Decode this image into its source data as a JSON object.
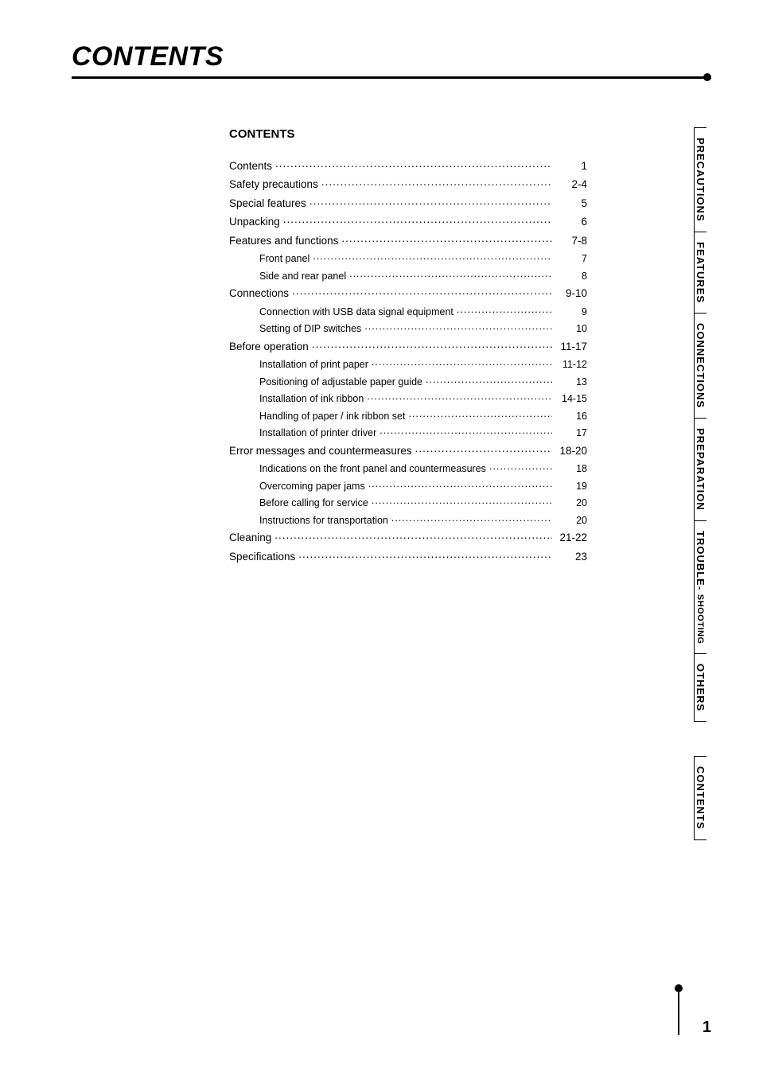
{
  "page_title": "CONTENTS",
  "section_heading": "CONTENTS",
  "page_number": "1",
  "toc": [
    {
      "label": "Contents",
      "page": "1",
      "level": 0
    },
    {
      "label": "Safety precautions",
      "page": "2-4",
      "level": 0
    },
    {
      "label": "Special features",
      "page": "5",
      "level": 0
    },
    {
      "label": "Unpacking",
      "page": "6",
      "level": 0
    },
    {
      "label": "Features and functions",
      "page": "7-8",
      "level": 0
    },
    {
      "label": "Front panel",
      "page": "7",
      "level": 1
    },
    {
      "label": "Side and rear panel",
      "page": "8",
      "level": 1
    },
    {
      "label": "Connections",
      "page": "9-10",
      "level": 0
    },
    {
      "label": "Connection with USB data signal equipment",
      "page": "9",
      "level": 1
    },
    {
      "label": "Setting of DIP switches",
      "page": "10",
      "level": 1
    },
    {
      "label": "Before operation",
      "page": "11-17",
      "level": 0
    },
    {
      "label": "Installation of print paper",
      "page": "11-12",
      "level": 1
    },
    {
      "label": "Positioning of adjustable paper guide",
      "page": "13",
      "level": 1
    },
    {
      "label": "Installation of ink ribbon",
      "page": "14-15",
      "level": 1
    },
    {
      "label": "Handling of paper / ink ribbon set",
      "page": "16",
      "level": 1
    },
    {
      "label": "Installation of printer driver",
      "page": "17",
      "level": 1
    },
    {
      "label": "Error messages and countermeasures",
      "page": "18-20",
      "level": 0
    },
    {
      "label": "Indications on the front panel and countermeasures",
      "page": "18",
      "level": 1
    },
    {
      "label": "Overcoming paper jams",
      "page": "19",
      "level": 1
    },
    {
      "label": "Before calling for service",
      "page": "20",
      "level": 1
    },
    {
      "label": "Instructions for transportation",
      "page": "20",
      "level": 1
    },
    {
      "label": "Cleaning",
      "page": "21-22",
      "level": 0
    },
    {
      "label": "Specifications",
      "page": "23",
      "level": 0
    }
  ],
  "tabs": [
    {
      "label": "PRECAUTIONS"
    },
    {
      "label": "FEATURES"
    },
    {
      "label": "CONNECTIONS"
    },
    {
      "label": "PREPARATION"
    },
    {
      "label": "TROUBLE-",
      "sublabel": "SHOOTING"
    },
    {
      "label": "OTHERS"
    },
    {
      "label": "CONTENTS",
      "gap_before": true
    }
  ],
  "colors": {
    "text": "#000000",
    "background": "#ffffff"
  }
}
